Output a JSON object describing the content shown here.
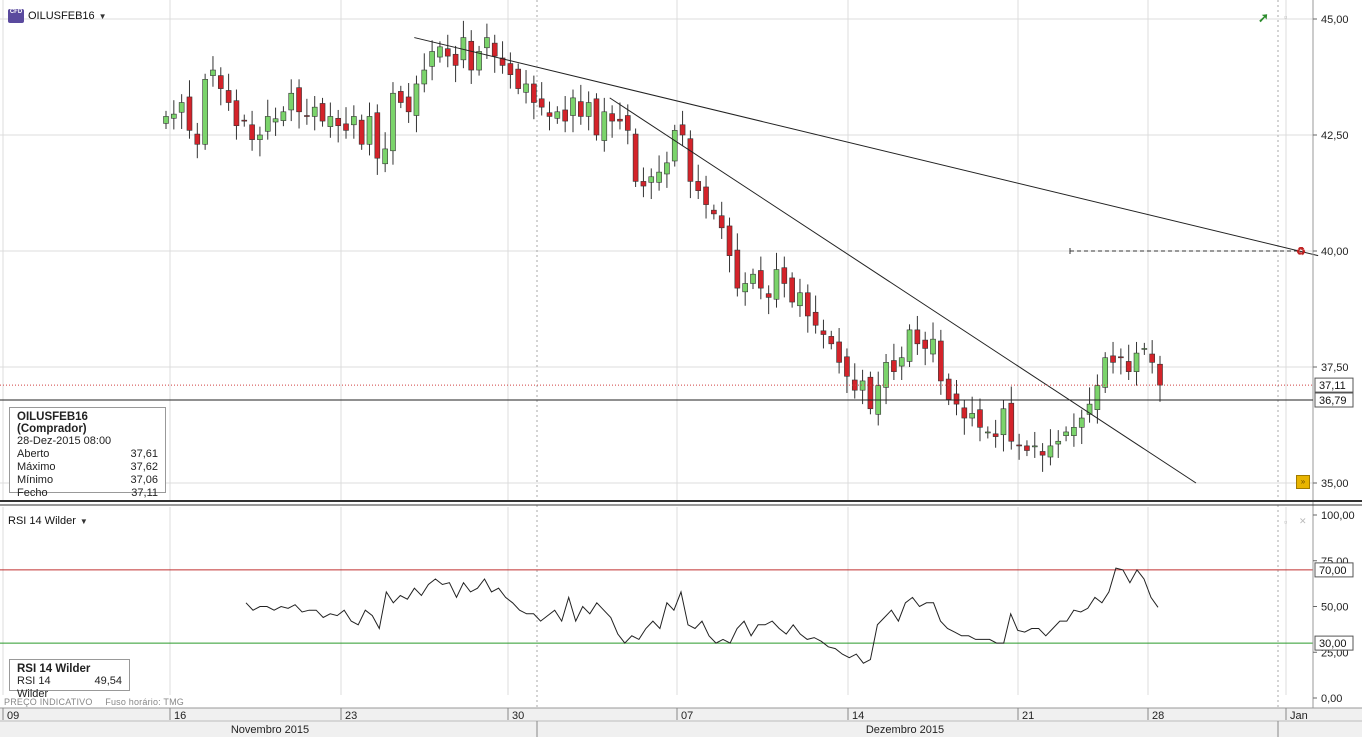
{
  "chart_data": [
    {
      "type": "candlestick",
      "symbol": "OILUSFEB16",
      "x_ticks": [
        "09",
        "16",
        "23",
        "30",
        "07",
        "14",
        "21",
        "28",
        "Jan"
      ],
      "months": [
        "Novembro 2015",
        "Dezembro 2015"
      ],
      "y_ticks": [
        "35,00",
        "37,50",
        "40,00",
        "42,50",
        "45,00"
      ],
      "ylim": [
        34.5,
        45.2
      ],
      "current_price_label": "37,11",
      "crosshair_price_label": "36,79",
      "close_path": [
        42.9,
        42.95,
        43.2,
        42.6,
        42.3,
        43.7,
        43.9,
        43.5,
        43.2,
        42.7,
        42.8,
        42.4,
        42.5,
        42.9,
        42.85,
        43.0,
        43.4,
        43.0,
        42.9,
        43.1,
        42.8,
        42.9,
        42.7,
        42.6,
        42.9,
        42.3,
        42.9,
        42.0,
        42.2,
        43.4,
        43.2,
        43.0,
        43.6,
        43.9,
        44.3,
        44.4,
        44.2,
        44.0,
        44.6,
        43.9,
        44.3,
        44.6,
        44.2,
        44.0,
        43.8,
        43.5,
        43.6,
        43.2,
        43.1,
        42.9,
        43.0,
        42.8,
        43.3,
        42.9,
        43.2,
        42.5,
        43.0,
        42.8,
        42.8,
        42.6,
        41.5,
        41.4,
        41.6,
        41.7,
        41.9,
        42.6,
        42.5,
        41.5,
        41.3,
        41.0,
        40.8,
        40.5,
        39.9,
        39.2,
        39.3,
        39.5,
        39.2,
        39.0,
        39.6,
        39.3,
        38.9,
        39.1,
        38.6,
        38.4,
        38.2,
        38.0,
        37.6,
        37.3,
        37.0,
        37.2,
        36.6,
        37.1,
        37.6,
        37.4,
        37.7,
        38.3,
        38.0,
        37.9,
        38.1,
        37.2,
        36.8,
        36.7,
        36.4,
        36.5,
        36.2,
        36.1,
        36.0,
        36.6,
        35.9,
        35.8,
        35.7,
        35.8,
        35.6,
        35.8,
        35.9,
        36.1,
        36.2,
        36.4,
        36.7,
        37.1,
        37.7,
        37.6,
        37.7,
        37.4,
        37.8,
        37.9,
        37.6,
        37.11
      ],
      "trendlines": [
        {
          "from": {
            "date": "26-Nov-2015",
            "price": 44.6
          },
          "to": {
            "date": "02-Jan-2016",
            "price": 39.9
          }
        },
        {
          "from": {
            "date": "04-Dez-2015",
            "price": 43.3
          },
          "to": {
            "date": "28-Dez-2015",
            "price": 35.0
          }
        }
      ],
      "pending_order_level": 40.0,
      "info": {
        "title": "OILUSFEB16 (Comprador)",
        "datetime": "28-Dez-2015 08:00",
        "rows": [
          {
            "label": "Aberto",
            "value": "37,61"
          },
          {
            "label": "Máximo",
            "value": "37,62"
          },
          {
            "label": "Mínimo",
            "value": "37,06"
          },
          {
            "label": "Fecho",
            "value": "37,11"
          }
        ]
      }
    },
    {
      "type": "line",
      "name": "RSI 14 Wilder",
      "y_ticks": [
        "0,00",
        "25,00",
        "50,00",
        "75,00",
        "100,00"
      ],
      "ylim": [
        0,
        100
      ],
      "levels": [
        {
          "value": 70,
          "label": "70,00",
          "color": "#c03030"
        },
        {
          "value": 30,
          "label": "30,00",
          "color": "#2a9a2a"
        }
      ],
      "values": [
        52,
        48,
        50,
        50,
        48,
        50,
        49,
        51,
        47,
        48,
        48,
        44,
        46,
        45,
        48,
        42,
        40,
        48,
        45,
        38,
        58,
        52,
        56,
        54,
        60,
        56,
        62,
        65,
        62,
        63,
        55,
        63,
        58,
        60,
        65,
        58,
        60,
        55,
        52,
        48,
        46,
        46,
        42,
        45,
        48,
        42,
        55,
        42,
        50,
        46,
        52,
        48,
        44,
        35,
        30,
        34,
        32,
        38,
        42,
        38,
        52,
        48,
        58,
        40,
        38,
        42,
        34,
        30,
        32,
        30,
        38,
        42,
        34,
        40,
        40,
        42,
        38,
        35,
        40,
        35,
        32,
        33,
        31,
        28,
        27,
        24,
        22,
        24,
        19,
        21,
        40,
        44,
        48,
        42,
        52,
        55,
        50,
        52,
        52,
        42,
        38,
        36,
        34,
        34,
        32,
        32,
        32,
        30,
        30,
        46,
        37,
        36,
        38,
        38,
        34,
        38,
        42,
        42,
        48,
        47,
        49,
        55,
        52,
        58,
        71,
        70,
        63,
        70,
        65,
        55,
        49.54
      ],
      "info": {
        "title": "RSI 14 Wilder",
        "label": "RSI 14 Wilder",
        "value": "49,54"
      }
    }
  ],
  "header": {
    "symbol": "OILUSFEB16",
    "icon_text": "CFD",
    "rsi_selector": "RSI 14 Wilder"
  },
  "footer": {
    "price_type": "PREÇO INDICATIVO",
    "timezone": "Fuso horário: TMG"
  },
  "colors": {
    "bull": "#7bd46b",
    "bear": "#d4232a",
    "trend": "#222222",
    "grid": "#dcdcdc",
    "rsi_line": "#222222"
  }
}
